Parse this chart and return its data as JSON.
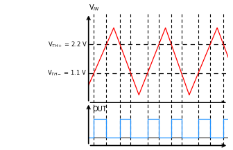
{
  "vth_high": 2.2,
  "vth_low": 1.1,
  "vth_high_label": "V$_{TH+}$ = 2.2 V",
  "vth_low_label": "V$_{TH-}$ = 1.1 V",
  "vin_label": "V$_{IN}$",
  "out_label": "OUT",
  "triangle_color": "#ff0000",
  "square_color": "#1e90ff",
  "axis_color": "#000000",
  "bg_color": "#ffffff",
  "v_peak": 2.85,
  "v_trough": 0.25,
  "fig_width": 3.36,
  "fig_height": 2.17,
  "dpi": 100
}
